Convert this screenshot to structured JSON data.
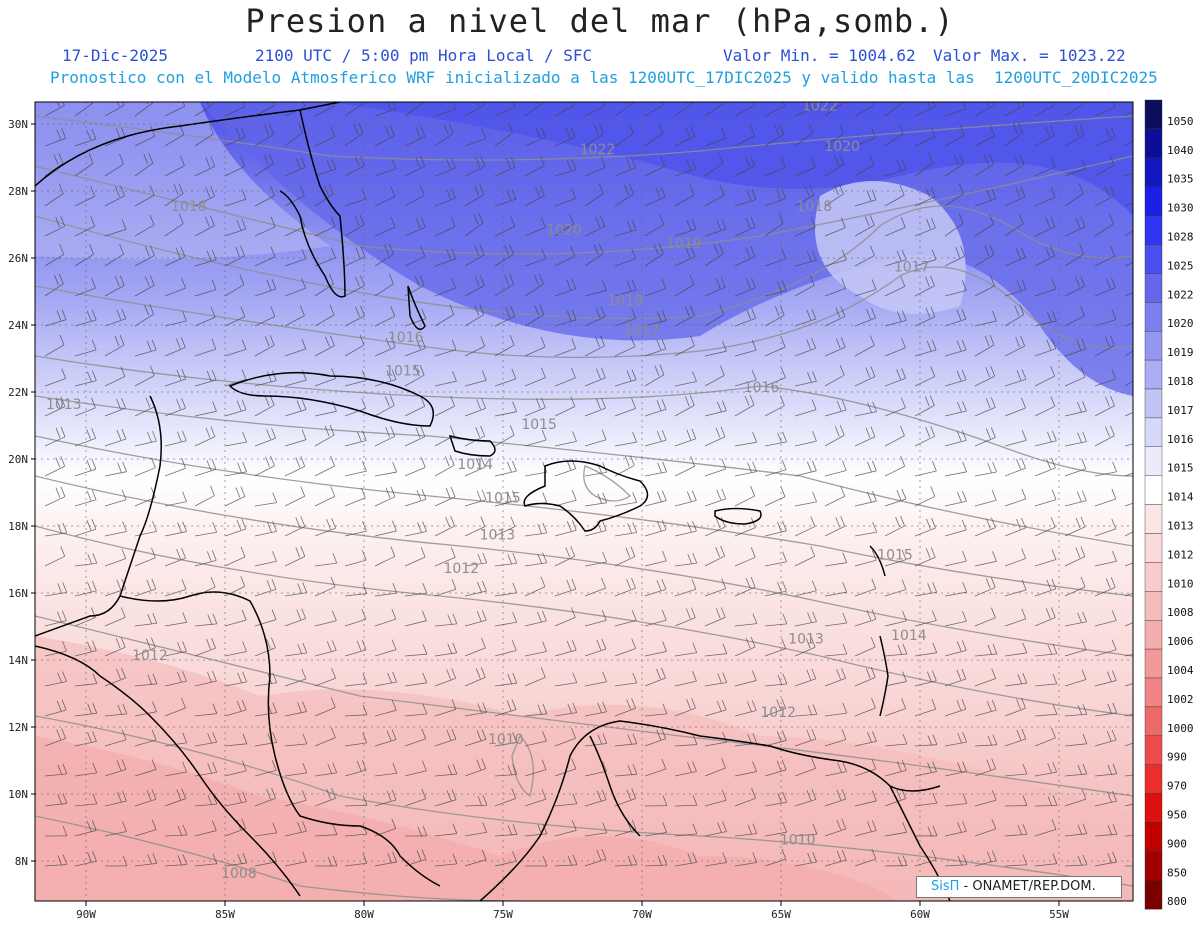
{
  "header": {
    "title": "Presion a nivel del mar (hPa,somb.)",
    "date": "17-Dic-2025",
    "time": "2100 UTC / 5:00 pm Hora Local / SFC",
    "min_value": "Valor Min. = 1004.62",
    "max_value": "Valor Max. = 1023.22",
    "forecast_note": "Pronostico con el Modelo Atmosferico WRF inicializado a las 1200UTC_17DIC2025 y valido hasta las  1200UTC_20DIC2025"
  },
  "axes": {
    "lon_labels": [
      "90W",
      "85W",
      "80W",
      "75W",
      "70W",
      "65W",
      "60W",
      "55W"
    ],
    "lat_labels": [
      "30N",
      "28N",
      "26N",
      "24N",
      "22N",
      "20N",
      "18N",
      "16N",
      "14N",
      "12N",
      "10N",
      "8N"
    ]
  },
  "isobar_labels": [
    {
      "text": "1022",
      "lon": -71.6,
      "lat": 29.1
    },
    {
      "text": "1022",
      "lon": -63.6,
      "lat": 30.4
    },
    {
      "text": "1020",
      "lon": -62.8,
      "lat": 29.2
    },
    {
      "text": "1020",
      "lon": -72.8,
      "lat": 26.7
    },
    {
      "text": "1019",
      "lon": -68.5,
      "lat": 26.3
    },
    {
      "text": "1018",
      "lon": -86.3,
      "lat": 27.4
    },
    {
      "text": "1018",
      "lon": -63.8,
      "lat": 27.4
    },
    {
      "text": "1018",
      "lon": -70.6,
      "lat": 24.6
    },
    {
      "text": "1017",
      "lon": -60.3,
      "lat": 25.6
    },
    {
      "text": "1017",
      "lon": -70.0,
      "lat": 23.7
    },
    {
      "text": "1016",
      "lon": -78.5,
      "lat": 23.5
    },
    {
      "text": "1016",
      "lon": -65.7,
      "lat": 22.0
    },
    {
      "text": "1015",
      "lon": -73.7,
      "lat": 20.9
    },
    {
      "text": "1015",
      "lon": -60.9,
      "lat": 17.0
    },
    {
      "text": "1014",
      "lon": -76.0,
      "lat": 19.7
    },
    {
      "text": "1014",
      "lon": -60.4,
      "lat": 14.6
    },
    {
      "text": "1013",
      "lon": -90.8,
      "lat": 21.5
    },
    {
      "text": "1013",
      "lon": -75.2,
      "lat": 17.6
    },
    {
      "text": "1013",
      "lon": -64.1,
      "lat": 14.5
    },
    {
      "text": "1012",
      "lon": -76.5,
      "lat": 16.6
    },
    {
      "text": "1012",
      "lon": -87.7,
      "lat": 14.0
    },
    {
      "text": "1012",
      "lon": -65.1,
      "lat": 12.3
    },
    {
      "text": "1010",
      "lon": -74.9,
      "lat": 11.5
    },
    {
      "text": "1010",
      "lon": -64.4,
      "lat": 8.5
    },
    {
      "text": "1008",
      "lon": -84.5,
      "lat": 7.5
    },
    {
      "text": "1015",
      "lon": -75.0,
      "lat": 18.7
    },
    {
      "text": "1015",
      "lon": -78.6,
      "lat": 22.5
    }
  ],
  "colorbar": {
    "levels": [
      "1050",
      "1040",
      "1035",
      "1030",
      "1028",
      "1025",
      "1022",
      "1020",
      "1019",
      "1018",
      "1017",
      "1016",
      "1015",
      "1014",
      "1013",
      "1012",
      "1010",
      "1008",
      "1006",
      "1004",
      "1002",
      "1000",
      "990",
      "970",
      "950",
      "900",
      "850",
      "800"
    ],
    "colors": [
      "#0b0e5c",
      "#0a0f96",
      "#1217c0",
      "#1a1fe4",
      "#2f36f2",
      "#4a50f0",
      "#6367ea",
      "#7c80ee",
      "#9497f0",
      "#abaef4",
      "#c2c4f6",
      "#d8d9fa",
      "#ebebfc",
      "#ffffff",
      "#fbe6e6",
      "#fadadb",
      "#f8cccc",
      "#f5bcbc",
      "#f4adad",
      "#f29a9a",
      "#f08484",
      "#ee6a6a",
      "#ec4c4c",
      "#ea2e2e",
      "#dd1010",
      "#c00000",
      "#a00000",
      "#7a0000"
    ]
  },
  "credit": {
    "brand": "SisΠ",
    "org": " - ONAMET/REP.DOM."
  }
}
